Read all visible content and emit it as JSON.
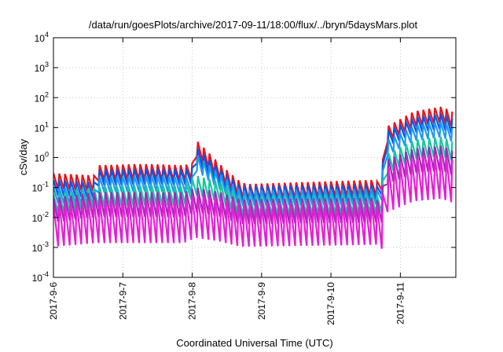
{
  "chart_data": {
    "type": "line",
    "title": "/data/run/goesPlots/archive/2017-09-11/18:00/flux/../bryn/5daysMars.plot",
    "xlabel": "Coordinated Universal Time (UTC)",
    "ylabel": "cSv/day",
    "y_scale": "log",
    "ylim": [
      0.0001,
      10000
    ],
    "y_ticks": [
      {
        "value": 0.0001,
        "base": "10",
        "exp": "-4"
      },
      {
        "value": 0.001,
        "base": "10",
        "exp": "-3"
      },
      {
        "value": 0.01,
        "base": "10",
        "exp": "-2"
      },
      {
        "value": 0.1,
        "base": "10",
        "exp": "-1"
      },
      {
        "value": 1,
        "base": "10",
        "exp": "0"
      },
      {
        "value": 10,
        "base": "10",
        "exp": "1"
      },
      {
        "value": 100,
        "base": "10",
        "exp": "2"
      },
      {
        "value": 1000,
        "base": "10",
        "exp": "3"
      },
      {
        "value": 10000,
        "base": "10",
        "exp": "4"
      }
    ],
    "x_ticks": [
      "2017-9-6",
      "2017-9-7",
      "2017-9-8",
      "2017-9-9",
      "2017-9-10",
      "2017-9-11"
    ],
    "xlim_days": [
      0,
      5.8
    ],
    "grid": true,
    "legend": "none",
    "oscillation_period_days": 0.0833,
    "series": [
      {
        "color": "#e8141a",
        "peak_envelope": [
          [
            0,
            0.3
          ],
          [
            0.6,
            0.25
          ],
          [
            0.62,
            0.55
          ],
          [
            1.2,
            0.6
          ],
          [
            1.38,
            0.6
          ],
          [
            1.88,
            0.55
          ],
          [
            2.0,
            0.65
          ],
          [
            2.05,
            4.0
          ],
          [
            2.4,
            0.6
          ],
          [
            2.7,
            0.15
          ],
          [
            2.8,
            0.13
          ],
          [
            4.65,
            0.18
          ],
          [
            4.72,
            0.1
          ],
          [
            4.78,
            10
          ],
          [
            5.2,
            35
          ],
          [
            5.6,
            50
          ],
          [
            5.8,
            30
          ]
        ],
        "trough_ratio": 0.3
      },
      {
        "color": "#0a57e6",
        "peak_envelope": [
          [
            0,
            0.18
          ],
          [
            0.6,
            0.15
          ],
          [
            0.62,
            0.38
          ],
          [
            1.38,
            0.42
          ],
          [
            1.88,
            0.4
          ],
          [
            2.0,
            0.45
          ],
          [
            2.05,
            2.3
          ],
          [
            2.4,
            0.4
          ],
          [
            2.7,
            0.11
          ],
          [
            4.65,
            0.12
          ],
          [
            4.72,
            0.07
          ],
          [
            4.78,
            7
          ],
          [
            5.2,
            22
          ],
          [
            5.6,
            30
          ],
          [
            5.8,
            18
          ]
        ],
        "trough_ratio": 0.3
      },
      {
        "color": "#1e9af0",
        "peak_envelope": [
          [
            0,
            0.1
          ],
          [
            0.6,
            0.09
          ],
          [
            0.62,
            0.22
          ],
          [
            1.38,
            0.25
          ],
          [
            1.88,
            0.22
          ],
          [
            2.0,
            0.22
          ],
          [
            2.05,
            1.3
          ],
          [
            2.4,
            0.28
          ],
          [
            2.7,
            0.08
          ],
          [
            4.65,
            0.09
          ],
          [
            4.72,
            0.05
          ],
          [
            4.78,
            3.5
          ],
          [
            5.2,
            12
          ],
          [
            5.6,
            16
          ],
          [
            5.8,
            10
          ]
        ],
        "trough_ratio": 0.3
      },
      {
        "color": "#18c7a0",
        "peak_envelope": [
          [
            0,
            0.06
          ],
          [
            0.62,
            0.1
          ],
          [
            1.38,
            0.12
          ],
          [
            1.88,
            0.11
          ],
          [
            2.05,
            0.25
          ],
          [
            2.4,
            0.15
          ],
          [
            2.7,
            0.05
          ],
          [
            4.65,
            0.06
          ],
          [
            4.72,
            0.03
          ],
          [
            4.78,
            1.2
          ],
          [
            5.2,
            4
          ],
          [
            5.6,
            5
          ],
          [
            5.8,
            3
          ]
        ],
        "trough_ratio": 0.22
      },
      {
        "color": "#9f2ab8",
        "peak_envelope": [
          [
            0,
            0.045
          ],
          [
            0.62,
            0.07
          ],
          [
            1.38,
            0.07
          ],
          [
            1.88,
            0.07
          ],
          [
            2.05,
            0.1
          ],
          [
            2.4,
            0.07
          ],
          [
            2.7,
            0.04
          ],
          [
            4.65,
            0.045
          ],
          [
            4.72,
            0.02
          ],
          [
            4.78,
            0.8
          ],
          [
            5.2,
            2
          ],
          [
            5.6,
            2.5
          ],
          [
            5.8,
            1.5
          ]
        ],
        "trough_ratio": 0.15
      },
      {
        "color": "#e81ed6",
        "peak_envelope": [
          [
            0,
            0.03
          ],
          [
            0.62,
            0.04
          ],
          [
            1.38,
            0.04
          ],
          [
            1.88,
            0.04
          ],
          [
            2.05,
            0.06
          ],
          [
            2.4,
            0.045
          ],
          [
            2.7,
            0.03
          ],
          [
            4.65,
            0.035
          ],
          [
            4.72,
            0.012
          ],
          [
            4.78,
            0.4
          ],
          [
            5.2,
            1.0
          ],
          [
            5.6,
            1.2
          ],
          [
            5.8,
            0.8
          ]
        ],
        "trough_ratio": 0.035
      }
    ]
  }
}
